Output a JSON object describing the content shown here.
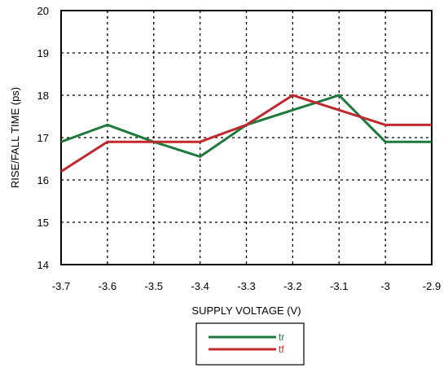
{
  "chart_data": {
    "type": "line",
    "xlabel": "SUPPLY VOLTAGE (V)",
    "ylabel": "RISE/FALL TIME (ps)",
    "xlim": [
      -3.7,
      -2.9
    ],
    "ylim": [
      14,
      20
    ],
    "x_ticks": [
      "-3.7",
      "-3.6",
      "-3.5",
      "-3.4",
      "-3.3",
      "-3.2",
      "-3.1",
      "-3",
      "-2.9"
    ],
    "y_ticks": [
      "14",
      "15",
      "16",
      "17",
      "18",
      "19",
      "20"
    ],
    "grid": true,
    "legend_position": "bottom-center",
    "series": [
      {
        "name": "tr",
        "color": "#1e7a3c",
        "x": [
          -3.7,
          -3.6,
          -3.5,
          -3.4,
          -3.3,
          -3.2,
          -3.1,
          -3.0,
          -2.9
        ],
        "y": [
          16.9,
          17.3,
          16.9,
          16.55,
          17.3,
          17.65,
          18.0,
          16.9,
          16.9
        ]
      },
      {
        "name": "tf",
        "color": "#c0282d",
        "x": [
          -3.7,
          -3.6,
          -3.5,
          -3.4,
          -3.3,
          -3.2,
          -3.1,
          -3.0,
          -2.9
        ],
        "y": [
          16.2,
          16.9,
          16.9,
          16.9,
          17.3,
          18.0,
          17.65,
          17.3,
          17.3
        ]
      }
    ]
  }
}
